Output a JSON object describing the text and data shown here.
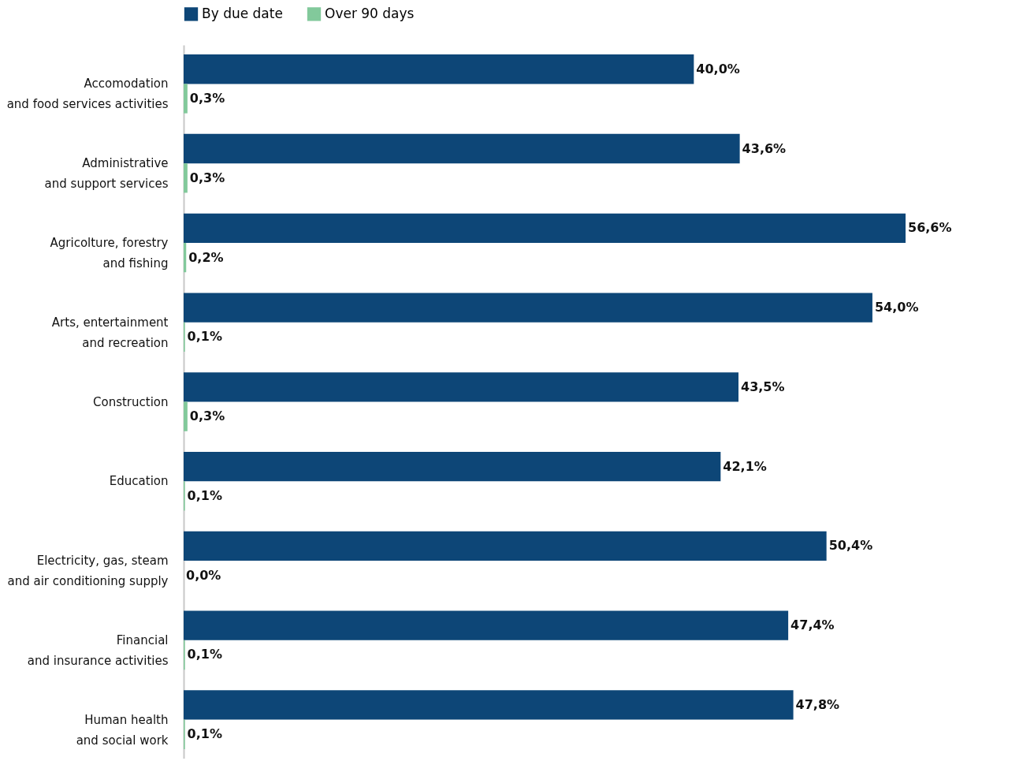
{
  "chart_data": {
    "type": "bar",
    "orientation": "horizontal",
    "legend": "top",
    "categories": [
      "Accomodation\nand food services activities",
      "Administrative\nand support services",
      "Agricolture, forestry\nand fishing",
      "Arts, entertainment\nand recreation",
      "Construction",
      "Education",
      "Electricity, gas, steam\nand air conditioning supply",
      "Financial\nand insurance activities",
      "Human health\nand social work"
    ],
    "series": [
      {
        "name": "By due date",
        "color": "#0d4677",
        "values": [
          40.0,
          43.6,
          56.6,
          54.0,
          43.5,
          42.1,
          50.4,
          47.4,
          47.8
        ],
        "value_labels": [
          "40,0%",
          "43,6%",
          "56,6%",
          "54,0%",
          "43,5%",
          "42,1%",
          "50,4%",
          "47,4%",
          "47,8%"
        ]
      },
      {
        "name": "Over 90 days",
        "color": "#82c99b",
        "values": [
          0.3,
          0.3,
          0.2,
          0.1,
          0.3,
          0.1,
          0.0,
          0.1,
          0.1
        ],
        "value_labels": [
          "0,3%",
          "0,3%",
          "0,2%",
          "0,1%",
          "0,3%",
          "0,1%",
          "0,0%",
          "0,1%",
          "0,1%"
        ]
      }
    ]
  }
}
